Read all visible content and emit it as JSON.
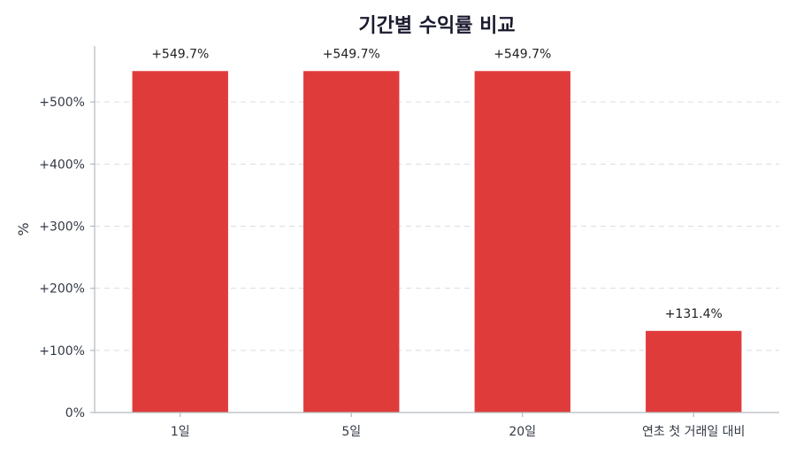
{
  "chart_data": {
    "type": "bar",
    "title": "기간별 수익률 비교",
    "ylabel": "%",
    "xlabel": "",
    "categories": [
      "1일",
      "5일",
      "20일",
      "연초 첫 거래일 대비"
    ],
    "values": [
      549.7,
      549.7,
      549.7,
      131.4
    ],
    "data_labels": [
      "+549.7%",
      "+549.7%",
      "+549.7%",
      "+131.4%"
    ],
    "ylim": [
      0,
      590
    ],
    "yticks": [
      0,
      100,
      200,
      300,
      400,
      500
    ],
    "ytick_labels": [
      "0%",
      "+100%",
      "+200%",
      "+300%",
      "+400%",
      "+500%"
    ],
    "grid": true,
    "bar_color": "#e03b3b"
  }
}
